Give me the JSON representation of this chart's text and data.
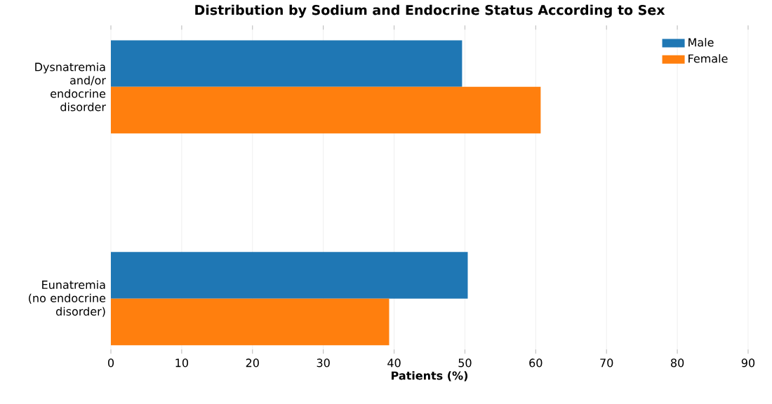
{
  "chart_data": {
    "type": "bar",
    "orientation": "horizontal",
    "title": "Distribution by Sodium and Endocrine Status According to Sex",
    "xlabel": "Patients (%)",
    "categories": [
      "Dysnatremia and/or endocrine disorder",
      "Eunatremia (no endocrine disorder)"
    ],
    "series": [
      {
        "name": "Male",
        "color": "#1f77b4",
        "values": [
          49.6,
          50.4
        ]
      },
      {
        "name": "Female",
        "color": "#ff7f0e",
        "values": [
          60.7,
          39.3
        ]
      }
    ],
    "xlim": [
      0,
      90
    ],
    "xticks": [
      0,
      10,
      20,
      30,
      40,
      50,
      60,
      70,
      80,
      90
    ],
    "grid": "x",
    "legend": "top right"
  }
}
